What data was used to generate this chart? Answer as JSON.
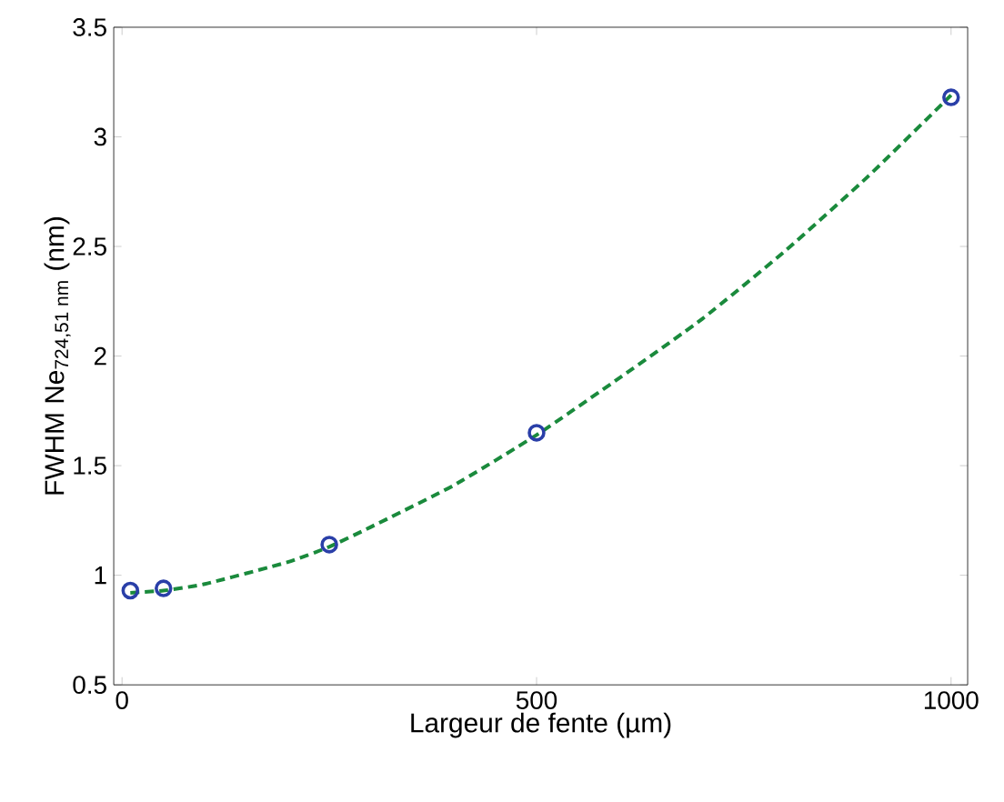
{
  "chart_data": {
    "type": "scatter",
    "xlabel": "Largeur de fente (µm)",
    "ylabel": "FWHM Ne$_{724,51 nm}$ (nm)",
    "xlim": [
      -10,
      1020
    ],
    "ylim": [
      0.5,
      3.5
    ],
    "xticks": [
      0,
      500,
      1000
    ],
    "yticks": [
      0.5,
      1,
      1.5,
      2,
      2.5,
      3,
      3.5
    ],
    "grid": false,
    "series": [
      {
        "type": "line",
        "color": "#1a8a3c",
        "line_style": "dashed",
        "marker": "none",
        "x": [
          10,
          50,
          100,
          200,
          250,
          300,
          400,
          500,
          600,
          700,
          800,
          900,
          1000
        ],
        "values": [
          0.92,
          0.93,
          0.96,
          1.06,
          1.13,
          1.22,
          1.41,
          1.64,
          1.9,
          2.17,
          2.48,
          2.82,
          3.19
        ]
      },
      {
        "color": "#2a3fa8",
        "marker": "circle",
        "x": [
          10,
          50,
          250,
          500,
          1000
        ],
        "values": [
          0.93,
          0.94,
          1.14,
          1.65,
          3.18
        ]
      }
    ]
  }
}
